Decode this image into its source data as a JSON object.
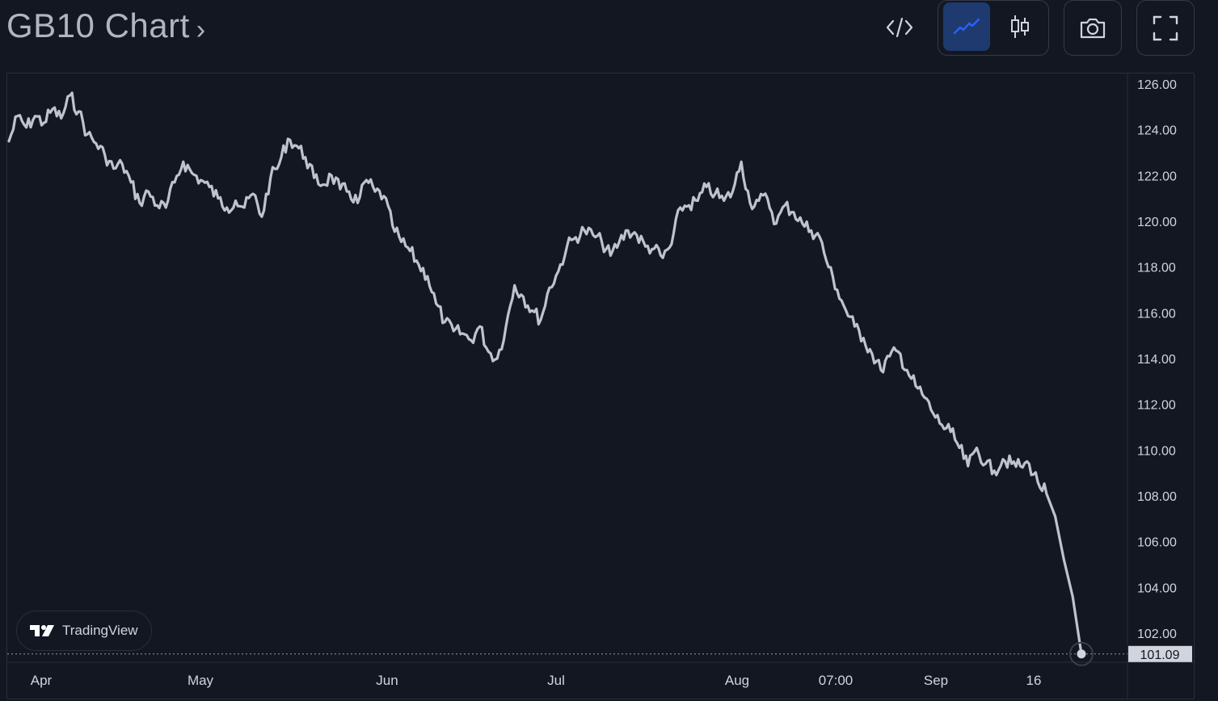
{
  "header": {
    "title": "GB10 Chart",
    "chevron": "›",
    "buttons": [
      {
        "name": "embed",
        "icon": "code-icon"
      },
      {
        "name": "line-chart",
        "icon": "line-chart-icon",
        "active": true
      },
      {
        "name": "candle-chart",
        "icon": "candlestick-icon",
        "active": false
      },
      {
        "name": "snapshot",
        "icon": "camera-icon"
      },
      {
        "name": "fullscreen",
        "icon": "fullscreen-icon"
      }
    ]
  },
  "branding": {
    "label": "TradingView",
    "icon": "tradingview-logo-icon"
  },
  "colors": {
    "background": "#131722",
    "line": "#c0c3cc",
    "grid": "#2a2e39",
    "axis_text": "#d1d4dc",
    "accent": "#2962ff",
    "price_tag_bg": "#d1d4dc",
    "price_tag_text": "#131722"
  },
  "chart_data": {
    "type": "line",
    "series": [
      {
        "values": [
          123.5,
          124.6,
          124.1,
          124.6,
          124.3,
          124.9,
          124.5,
          125.5,
          124.8,
          123.8,
          123.4,
          122.9,
          122.3,
          122.5,
          121.7,
          120.8,
          121.3,
          120.7,
          120.6,
          121.7,
          122.6,
          122.1,
          121.8,
          121.5,
          121.0,
          120.6,
          120.9,
          120.6,
          121.2,
          120.2,
          121.9,
          122.5,
          123.6,
          123.3,
          122.8,
          121.9,
          121.6,
          122.0,
          121.4,
          121.3,
          120.8,
          121.8,
          121.3,
          121.1,
          119.8,
          119.1,
          118.7,
          118.1,
          117.6,
          116.4,
          115.6,
          115.2,
          115.1,
          114.8,
          115.4,
          114.3,
          114.0,
          115.4,
          117.2,
          116.7,
          116.1,
          115.7,
          117.1,
          117.8,
          118.9,
          119.3,
          119.6,
          119.4,
          119.1,
          118.5,
          119.1,
          119.6,
          119.4,
          118.9,
          118.8,
          118.4,
          119.0,
          120.6,
          120.7,
          120.9,
          121.5,
          121.2,
          120.9,
          121.3,
          122.6,
          120.8,
          120.9,
          121.0,
          119.9,
          120.7,
          120.4,
          119.9,
          119.6,
          119.3,
          118.0,
          117.0,
          116.1,
          115.4,
          114.9,
          114.2,
          113.5,
          114.1,
          114.3,
          113.5,
          112.8,
          112.3,
          111.6,
          111.1,
          110.8,
          110.1,
          109.3,
          110.1,
          109.4,
          109.1,
          109.6,
          109.4,
          109.3,
          109.4,
          108.6,
          108.1,
          107.1,
          105.2,
          103.6,
          101.09
        ],
        "end_label": "101.09"
      }
    ],
    "x_ticks": [
      "Apr",
      "May",
      "Jun",
      "Jul",
      "Aug",
      "07:00",
      "Sep",
      "16"
    ],
    "y_ticks": [
      "126.00",
      "124.00",
      "122.00",
      "120.00",
      "118.00",
      "116.00",
      "114.00",
      "112.00",
      "110.00",
      "108.00",
      "106.00",
      "104.00",
      "102.00"
    ],
    "ylim": [
      100.6,
      126.6
    ],
    "last_price": "101.09",
    "grid": false
  }
}
